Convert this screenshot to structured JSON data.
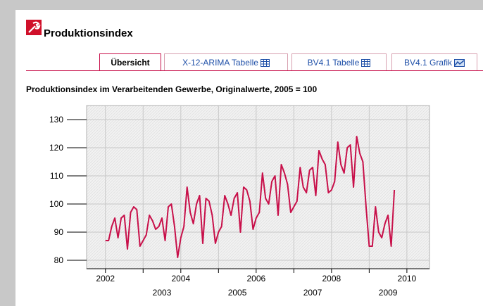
{
  "header": {
    "title": "Produktionsindex"
  },
  "tabs": [
    "Übersicht",
    "X-12-ARIMA Tabelle",
    "BV4.1 Tabelle",
    "BV4.1 Grafik"
  ],
  "chart_data": {
    "type": "line",
    "title": "Produktionsindex im Verarbeitenden Gewerbe, Originalwerte, 2005 = 100",
    "x": [
      2002.0,
      2002.083,
      2002.167,
      2002.25,
      2002.333,
      2002.417,
      2002.5,
      2002.583,
      2002.667,
      2002.75,
      2002.833,
      2002.917,
      2003.0,
      2003.083,
      2003.167,
      2003.25,
      2003.333,
      2003.417,
      2003.5,
      2003.583,
      2003.667,
      2003.75,
      2003.833,
      2003.917,
      2004.0,
      2004.083,
      2004.167,
      2004.25,
      2004.333,
      2004.417,
      2004.5,
      2004.583,
      2004.667,
      2004.75,
      2004.833,
      2004.917,
      2005.0,
      2005.083,
      2005.167,
      2005.25,
      2005.333,
      2005.417,
      2005.5,
      2005.583,
      2005.667,
      2005.75,
      2005.833,
      2005.917,
      2006.0,
      2006.083,
      2006.167,
      2006.25,
      2006.333,
      2006.417,
      2006.5,
      2006.583,
      2006.667,
      2006.75,
      2006.833,
      2006.917,
      2007.0,
      2007.083,
      2007.167,
      2007.25,
      2007.333,
      2007.417,
      2007.5,
      2007.583,
      2007.667,
      2007.75,
      2007.833,
      2007.917,
      2008.0,
      2008.083,
      2008.167,
      2008.25,
      2008.333,
      2008.417,
      2008.5,
      2008.583,
      2008.667,
      2008.75,
      2008.833,
      2008.917,
      2009.0,
      2009.083,
      2009.167,
      2009.25,
      2009.333,
      2009.417,
      2009.5,
      2009.583,
      2009.667
    ],
    "series": [
      {
        "name": "Produktionsindex",
        "color": "#c8104a",
        "values": [
          87,
          87,
          92,
          95,
          88,
          95,
          96,
          84,
          97,
          99,
          98,
          85,
          87,
          89,
          96,
          94,
          91,
          92,
          95,
          87,
          99,
          100,
          92,
          81,
          88,
          92,
          106,
          97,
          93,
          100,
          103,
          86,
          102,
          101,
          96,
          86,
          90,
          92,
          103,
          100,
          96,
          102,
          104,
          90,
          106,
          105,
          101,
          91,
          95,
          97,
          111,
          102,
          100,
          108,
          110,
          96,
          114,
          111,
          107,
          97,
          99,
          101,
          113,
          106,
          104,
          112,
          113,
          103,
          119,
          116,
          114,
          104,
          105,
          108,
          122,
          114,
          111,
          120,
          121,
          106,
          124,
          118,
          115,
          99,
          85,
          85,
          99,
          90,
          88,
          93,
          96,
          85,
          105
        ]
      }
    ],
    "xlim": [
      2001.5,
      2010.6
    ],
    "ylim": [
      77,
      135
    ],
    "xticks": [
      2002,
      2003,
      2004,
      2005,
      2006,
      2007,
      2008,
      2009,
      2010
    ],
    "yticks": [
      80,
      90,
      100,
      110,
      120,
      130
    ],
    "grid": true
  }
}
